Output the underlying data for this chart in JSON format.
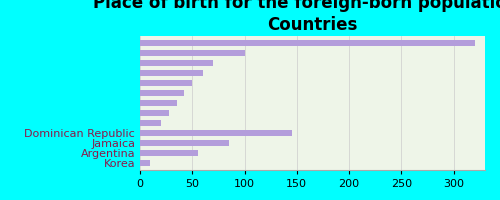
{
  "title": "Place of birth for the foreign-born population -\nCountries",
  "named_categories": [
    "Dominican Republic",
    "Jamaica",
    "Argentina",
    "Korea"
  ],
  "named_values": [
    145,
    85,
    55,
    10
  ],
  "unlabeled_values": [
    320,
    100,
    70,
    60,
    50,
    42,
    35,
    28,
    20
  ],
  "bar_color": "#b39ddb",
  "bg_color": "#00ffff",
  "plot_bg_color": "#eef5e8",
  "xlim": [
    0,
    330
  ],
  "xticks": [
    0,
    50,
    100,
    150,
    200,
    250,
    300
  ],
  "title_fontsize": 12,
  "tick_fontsize": 8,
  "label_fontsize": 8,
  "label_color": "#8b1a4a"
}
